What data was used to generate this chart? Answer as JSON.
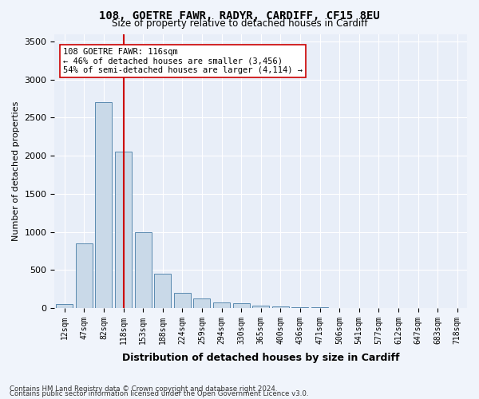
{
  "title1": "108, GOETRE FAWR, RADYR, CARDIFF, CF15 8EU",
  "title2": "Size of property relative to detached houses in Cardiff",
  "xlabel": "Distribution of detached houses by size in Cardiff",
  "ylabel": "Number of detached properties",
  "categories": [
    "12sqm",
    "47sqm",
    "82sqm",
    "118sqm",
    "153sqm",
    "188sqm",
    "224sqm",
    "259sqm",
    "294sqm",
    "330sqm",
    "365sqm",
    "400sqm",
    "436sqm",
    "471sqm",
    "506sqm",
    "541sqm",
    "577sqm",
    "612sqm",
    "647sqm",
    "683sqm",
    "718sqm"
  ],
  "values": [
    50,
    850,
    2700,
    2050,
    1000,
    450,
    200,
    130,
    75,
    60,
    30,
    20,
    10,
    5,
    3,
    2,
    1,
    1,
    1,
    1,
    0
  ],
  "bar_color": "#c9d9e8",
  "bar_edge_color": "#5a8ab0",
  "vline_x": 3,
  "vline_color": "#cc0000",
  "annotation_text": "108 GOETRE FAWR: 116sqm\n← 46% of detached houses are smaller (3,456)\n54% of semi-detached houses are larger (4,114) →",
  "annotation_box_color": "#ffffff",
  "annotation_box_edge": "#cc0000",
  "ylim": [
    0,
    3600
  ],
  "yticks": [
    0,
    500,
    1000,
    1500,
    2000,
    2500,
    3000,
    3500
  ],
  "footnote1": "Contains HM Land Registry data © Crown copyright and database right 2024.",
  "footnote2": "Contains public sector information licensed under the Open Government Licence v3.0.",
  "bg_color": "#f0f4fb",
  "plot_bg_color": "#e8eef8"
}
